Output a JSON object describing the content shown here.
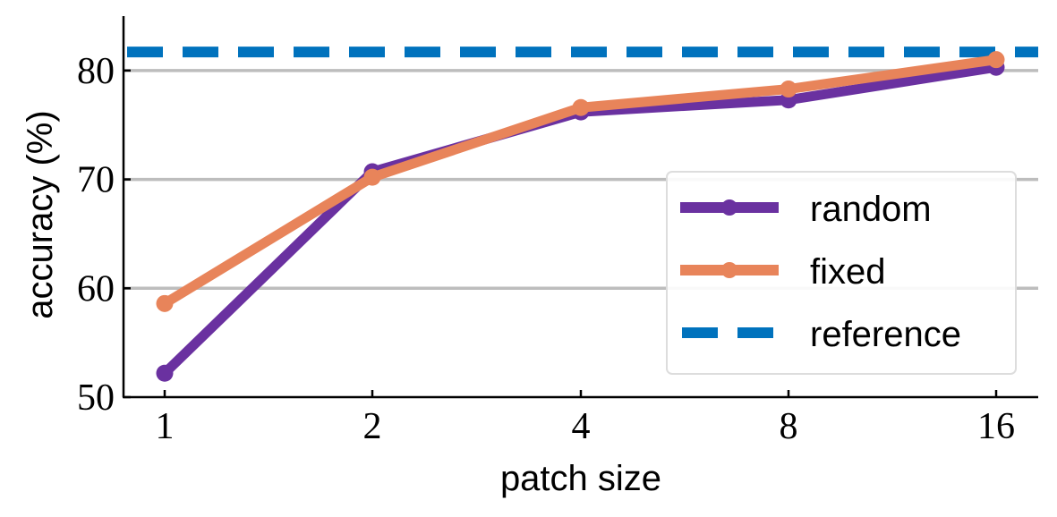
{
  "chart_data": {
    "type": "line",
    "x_categories": [
      "1",
      "2",
      "4",
      "8",
      "16"
    ],
    "xlabel": "patch size",
    "ylabel": "accuracy (%)",
    "ylim": [
      50,
      85
    ],
    "yticks": [
      50,
      60,
      70,
      80
    ],
    "grid": "horizontal",
    "legend": "right",
    "series": [
      {
        "name": "random",
        "values": [
          52.2,
          70.7,
          76.2,
          77.3,
          80.3
        ],
        "color": "#6a31a0",
        "style": "solid-marker"
      },
      {
        "name": "fixed",
        "values": [
          58.6,
          70.2,
          76.6,
          78.3,
          81.0
        ],
        "color": "#e8845a",
        "style": "solid-marker"
      }
    ],
    "reference": {
      "name": "reference",
      "value": 81.7,
      "color": "#0072bd",
      "style": "dashed"
    }
  }
}
